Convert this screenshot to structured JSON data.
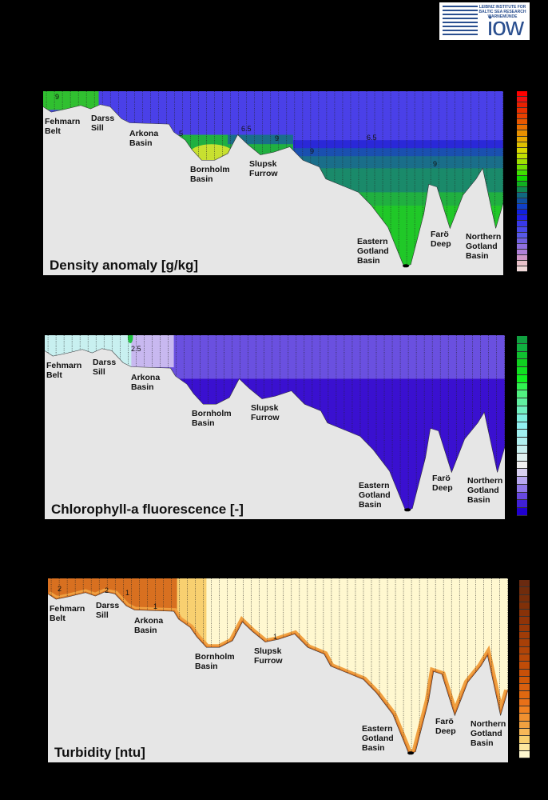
{
  "logo": {
    "text": "LEIBNIZ INSTITUTE FOR BALTIC SEA RESEARCH WARNEMÜNDE",
    "mark": "iow"
  },
  "chart_data": [
    {
      "type": "heatmap",
      "title": "Density anomaly [g/kg]",
      "locations": [
        "Fehmarn Belt",
        "Darss Sill",
        "Arkona Basin",
        "Bornholm Basin",
        "Slupsk Furrow",
        "Eastern Gotland Basin",
        "Farö Deep",
        "Northern Gotland Basin"
      ],
      "contour_labels": [
        "9",
        "5",
        "6.5",
        "9",
        "9",
        "6.5",
        "9"
      ],
      "colorbar": [
        "#ff0000",
        "#f01010",
        "#e82000",
        "#e83000",
        "#e84000",
        "#e85800",
        "#e87000",
        "#e89000",
        "#e8a800",
        "#e0c000",
        "#d8d800",
        "#c0e000",
        "#a0e000",
        "#70e000",
        "#40e000",
        "#10d800",
        "#10b020",
        "#108850",
        "#106880",
        "#1050a0",
        "#1040c8",
        "#1020e0",
        "#2020e8",
        "#3838e8",
        "#4848e8",
        "#5858e8",
        "#7060e0",
        "#9070e0",
        "#b080d8",
        "#d098c8",
        "#e8c0c8",
        "#f0d8d8"
      ]
    },
    {
      "type": "heatmap",
      "title": "Chlorophyll-a fluorescence [-]",
      "locations": [
        "Fehmarn Belt",
        "Darss Sill",
        "Arkona Basin",
        "Bornholm Basin",
        "Slupsk Furrow",
        "Eastern Gotland Basin",
        "Farö Deep",
        "Northern Gotland Basin"
      ],
      "contour_labels": [
        "2.5"
      ],
      "colorbar": [
        "#10a040",
        "#10b040",
        "#10c030",
        "#10d020",
        "#10e020",
        "#10f020",
        "#30f050",
        "#50f080",
        "#60f0a0",
        "#70f0c0",
        "#80f0e0",
        "#90f0f0",
        "#a0f0f0",
        "#b0f0f0",
        "#c8f0f0",
        "#e0f0f0",
        "#f0f0f0",
        "#d8d0f0",
        "#b8a8f0",
        "#9078e8",
        "#6848e0",
        "#4020d8",
        "#2000d0"
      ]
    },
    {
      "type": "heatmap",
      "title": "Turbidity [ntu]",
      "locations": [
        "Fehmarn Belt",
        "Darss Sill",
        "Arkona Basin",
        "Bornholm Basin",
        "Slupsk Furrow",
        "Eastern Gotland Basin",
        "Farö Deep",
        "Northern Gotland Basin"
      ],
      "contour_labels": [
        "2",
        "2",
        "1",
        "1",
        "1"
      ],
      "colorbar": [
        "#6a2a10",
        "#702c0c",
        "#782e0a",
        "#803008",
        "#883208",
        "#903408",
        "#983808",
        "#a03c08",
        "#a84008",
        "#b04408",
        "#b84808",
        "#c04c08",
        "#c85008",
        "#d05808",
        "#d86010",
        "#e06810",
        "#e87018",
        "#f08020",
        "#f09030",
        "#f0a040",
        "#f8b858",
        "#f8d070",
        "#fce8a0",
        "#fff8d0"
      ]
    }
  ]
}
